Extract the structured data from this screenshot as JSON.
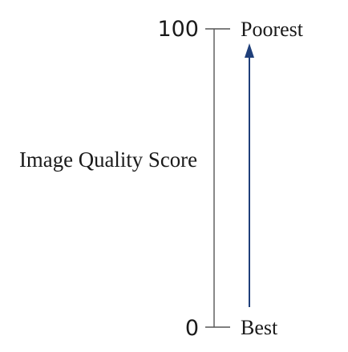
{
  "diagram": {
    "axis_title": "Image Quality Score",
    "scale": {
      "max_value": "100",
      "min_value": "0",
      "max_label": "Poorest",
      "min_label": "Best"
    },
    "arrow_direction": "up",
    "colors": {
      "axis_line": "#555555",
      "arrow": "#1f3f7a",
      "text": "#1a1a1a"
    }
  }
}
